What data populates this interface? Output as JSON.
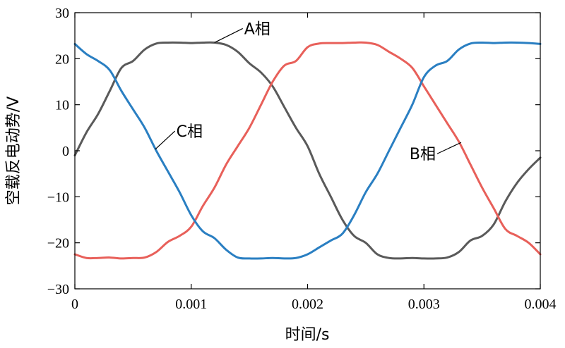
{
  "chart_data": {
    "type": "line",
    "title": "",
    "xlabel": "时间/s",
    "ylabel": "空载反电动势/V",
    "xlim": [
      0,
      0.004
    ],
    "ylim": [
      -30,
      30
    ],
    "xticks": [
      0,
      0.001,
      0.002,
      0.003,
      0.004
    ],
    "xtick_labels": [
      "0",
      "0.001",
      "0.002",
      "0.003",
      "0.004"
    ],
    "yticks": [
      30,
      20,
      10,
      0,
      -10,
      -20,
      -30
    ],
    "ytick_labels": [
      "30",
      "20",
      "10",
      "0",
      "−10",
      "−20",
      "−30"
    ],
    "grid": false,
    "legend": "none",
    "series": [
      {
        "name": "A相",
        "color": "#5a5a5a",
        "points": [
          [
            0,
            -1
          ],
          [
            0.0001,
            4
          ],
          [
            0.0002,
            8
          ],
          [
            0.0003,
            13
          ],
          [
            0.0004,
            18
          ],
          [
            0.0005,
            19.5
          ],
          [
            0.0006,
            22
          ],
          [
            0.0007,
            23.3
          ],
          [
            0.0008,
            23.5
          ],
          [
            0.0009,
            23.5
          ],
          [
            0.001,
            23.4
          ],
          [
            0.0011,
            23.5
          ],
          [
            0.0012,
            23.5
          ],
          [
            0.0013,
            23
          ],
          [
            0.0014,
            21.5
          ],
          [
            0.0015,
            19
          ],
          [
            0.0016,
            17
          ],
          [
            0.0017,
            14
          ],
          [
            0.0018,
            9.5
          ],
          [
            0.0019,
            5
          ],
          [
            0.002,
            1
          ],
          [
            0.0021,
            -5
          ],
          [
            0.0022,
            -10
          ],
          [
            0.0023,
            -15
          ],
          [
            0.0024,
            -18.5
          ],
          [
            0.0025,
            -20
          ],
          [
            0.0026,
            -22.5
          ],
          [
            0.0027,
            -23.3
          ],
          [
            0.0028,
            -23.4
          ],
          [
            0.0029,
            -23.3
          ],
          [
            0.003,
            -23.4
          ],
          [
            0.0031,
            -23.4
          ],
          [
            0.0032,
            -23.2
          ],
          [
            0.0033,
            -22
          ],
          [
            0.0034,
            -19.5
          ],
          [
            0.0035,
            -18.5
          ],
          [
            0.0036,
            -16
          ],
          [
            0.0037,
            -11
          ],
          [
            0.0038,
            -7
          ],
          [
            0.0039,
            -4
          ],
          [
            0.004,
            -1.5
          ]
        ]
      },
      {
        "name": "B相",
        "color": "#e8605a",
        "points": [
          [
            0,
            -22.5
          ],
          [
            0.0001,
            -23.3
          ],
          [
            0.0002,
            -23.3
          ],
          [
            0.0003,
            -23.2
          ],
          [
            0.0004,
            -23.4
          ],
          [
            0.0005,
            -23.3
          ],
          [
            0.0006,
            -23.2
          ],
          [
            0.0007,
            -22
          ],
          [
            0.0008,
            -19.8
          ],
          [
            0.0009,
            -18.5
          ],
          [
            0.001,
            -16.5
          ],
          [
            0.0011,
            -12
          ],
          [
            0.0012,
            -8
          ],
          [
            0.0013,
            -3
          ],
          [
            0.0014,
            1
          ],
          [
            0.0015,
            5
          ],
          [
            0.0016,
            10
          ],
          [
            0.0017,
            15
          ],
          [
            0.0018,
            18.5
          ],
          [
            0.0019,
            19.5
          ],
          [
            0.002,
            22.5
          ],
          [
            0.0021,
            23.3
          ],
          [
            0.0022,
            23.4
          ],
          [
            0.0023,
            23.4
          ],
          [
            0.0024,
            23.5
          ],
          [
            0.0025,
            23.5
          ],
          [
            0.0026,
            23
          ],
          [
            0.0027,
            21.5
          ],
          [
            0.0028,
            20
          ],
          [
            0.0029,
            18
          ],
          [
            0.003,
            14
          ],
          [
            0.0031,
            10
          ],
          [
            0.0032,
            6
          ],
          [
            0.0033,
            2
          ],
          [
            0.0034,
            -3
          ],
          [
            0.0035,
            -8
          ],
          [
            0.0036,
            -12.5
          ],
          [
            0.0037,
            -17
          ],
          [
            0.0038,
            -18.5
          ],
          [
            0.0039,
            -20
          ],
          [
            0.004,
            -22.5
          ]
        ]
      },
      {
        "name": "C相",
        "color": "#2a7fc2",
        "points": [
          [
            0,
            23.2
          ],
          [
            0.0001,
            21
          ],
          [
            0.0002,
            19.5
          ],
          [
            0.0003,
            17.5
          ],
          [
            0.0004,
            13
          ],
          [
            0.0005,
            9
          ],
          [
            0.0006,
            5
          ],
          [
            0.0007,
            0
          ],
          [
            0.0008,
            -4.5
          ],
          [
            0.0009,
            -9
          ],
          [
            0.001,
            -14
          ],
          [
            0.0011,
            -17.5
          ],
          [
            0.0012,
            -19
          ],
          [
            0.0013,
            -21.5
          ],
          [
            0.0014,
            -23.2
          ],
          [
            0.0015,
            -23.4
          ],
          [
            0.0016,
            -23.4
          ],
          [
            0.0017,
            -23.3
          ],
          [
            0.0018,
            -23.4
          ],
          [
            0.0019,
            -23.3
          ],
          [
            0.002,
            -22.5
          ],
          [
            0.0021,
            -21
          ],
          [
            0.0022,
            -19.5
          ],
          [
            0.0023,
            -18
          ],
          [
            0.0024,
            -14
          ],
          [
            0.0025,
            -9
          ],
          [
            0.0026,
            -5
          ],
          [
            0.0027,
            0
          ],
          [
            0.0028,
            5
          ],
          [
            0.0029,
            10
          ],
          [
            0.003,
            16
          ],
          [
            0.0031,
            18.5
          ],
          [
            0.0032,
            19.5
          ],
          [
            0.0033,
            22
          ],
          [
            0.0034,
            23.3
          ],
          [
            0.0035,
            23.5
          ],
          [
            0.0036,
            23.4
          ],
          [
            0.0037,
            23.5
          ],
          [
            0.0038,
            23.5
          ],
          [
            0.0039,
            23.4
          ],
          [
            0.004,
            23.2
          ]
        ]
      }
    ],
    "annotations": [
      {
        "text": "A相",
        "series": "A相",
        "at": [
          0.0012,
          23.5
        ]
      },
      {
        "text": "C相",
        "series": "C相",
        "at": [
          0.00069,
          0.3
        ]
      },
      {
        "text": "B相",
        "series": "B相",
        "at": [
          0.00332,
          1.8
        ]
      }
    ]
  }
}
